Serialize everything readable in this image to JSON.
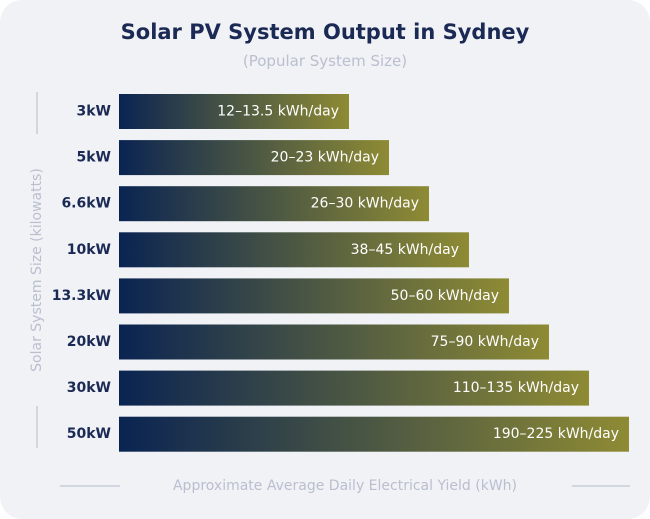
{
  "chart_data": {
    "type": "bar",
    "orientation": "horizontal",
    "title": "Solar PV System Output in Sydney",
    "subtitle": "(Popular System Size)",
    "ylabel": "Solar System Size (kilowatts)",
    "xlabel": "Approximate Average Daily Electrical Yield (kWh)",
    "categories": [
      "3kW",
      "5kW",
      "6.6kW",
      "10kW",
      "13.3kW",
      "20kW",
      "30kW",
      "50kW"
    ],
    "series": [
      {
        "labels": [
          "12–13.5 kWh/day",
          "20–23 kWh/day",
          "26–30 kWh/day",
          "38–45 kWh/day",
          "50–60 kWh/day",
          "75–90 kWh/day",
          "110–135 kWh/day",
          "190–225 kWh/day"
        ]
      }
    ],
    "colors": {
      "bar_start": "#0a2452",
      "bar_end": "#8e8b34",
      "title": "#1b2a55",
      "muted": "#b9bfcf",
      "category_text": "#1b2a55"
    }
  }
}
